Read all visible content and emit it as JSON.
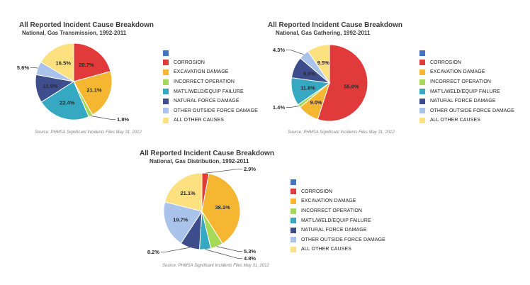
{
  "source_text": "Source: PHMSA Significant Incidents Files May 31, 2012",
  "legend": [
    {
      "label": "",
      "color": "#4472c4"
    },
    {
      "label": "CORROSION",
      "color": "#e03a3a"
    },
    {
      "label": "EXCAVATION DAMAGE",
      "color": "#f5b731"
    },
    {
      "label": "INCORRECT OPERATION",
      "color": "#a6d957"
    },
    {
      "label": "MAT'L/WELD/EQUIP FAILURE",
      "color": "#37a8c2"
    },
    {
      "label": "NATURAL FORCE DAMAGE",
      "color": "#3e4d8c"
    },
    {
      "label": "OTHER OUTSIDE FORCE DAMAGE",
      "color": "#a9c3ea"
    },
    {
      "label": "ALL OTHER CAUSES",
      "color": "#fde07f"
    }
  ],
  "chart_data": [
    {
      "type": "pie",
      "title": "All Reported Incident Cause Breakdown",
      "subtitle": "National, Gas Transmission, 1992-2011",
      "categories": [
        "CORROSION",
        "EXCAVATION DAMAGE",
        "INCORRECT OPERATION",
        "MAT'L/WELD/EQUIP FAILURE",
        "NATURAL FORCE DAMAGE",
        "OTHER OUTSIDE FORCE DAMAGE",
        "ALL OTHER CAUSES"
      ],
      "values": [
        20.7,
        21.1,
        1.8,
        22.4,
        11.9,
        5.6,
        16.5
      ],
      "labels": [
        "20.7%",
        "21.1%",
        "1.8%",
        "22.4%",
        "11.9%",
        "5.6%",
        "16.5%"
      ]
    },
    {
      "type": "pie",
      "title": "All Reported Incident Cause Breakdown",
      "subtitle": "National, Gas Gathering, 1992-2011",
      "categories": [
        "CORROSION",
        "EXCAVATION DAMAGE",
        "INCORRECT OPERATION",
        "MAT'L/WELD/EQUIP FAILURE",
        "NATURAL FORCE DAMAGE",
        "OTHER OUTSIDE FORCE DAMAGE",
        "ALL OTHER CAUSES"
      ],
      "values": [
        55.0,
        9.0,
        1.4,
        11.8,
        9.0,
        4.3,
        9.5
      ],
      "labels": [
        "55.0%",
        "9.0%",
        "1.4%",
        "11.8%",
        "9.0%",
        "4.3%",
        "9.5%"
      ]
    },
    {
      "type": "pie",
      "title": "All Reported Incident Cause Breakdown",
      "subtitle": "National, Gas Distribution, 1992-2011",
      "categories": [
        "CORROSION",
        "EXCAVATION DAMAGE",
        "INCORRECT OPERATION",
        "MAT'L/WELD/EQUIP FAILURE",
        "NATURAL FORCE DAMAGE",
        "OTHER OUTSIDE FORCE DAMAGE",
        "ALL OTHER CAUSES"
      ],
      "values": [
        2.9,
        38.1,
        5.3,
        4.8,
        8.2,
        19.7,
        21.1
      ],
      "labels": [
        "2.9%",
        "38.1%",
        "5.3%",
        "4.8%",
        "8.2%",
        "19.7%",
        "21.1%"
      ]
    }
  ]
}
